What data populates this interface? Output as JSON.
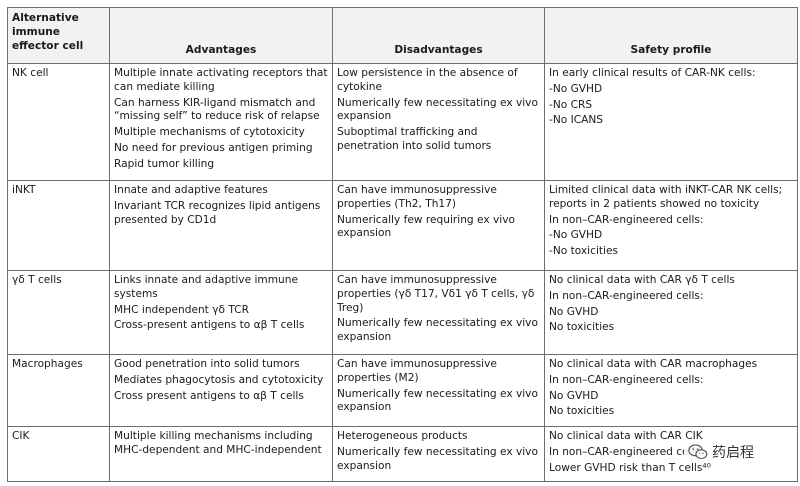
{
  "headers": [
    "Alternative immune effector cell",
    "Advantages",
    "Disadvantages",
    "Safety profile"
  ],
  "rows": [
    {
      "cell": "NK cell",
      "advantages": [
        "Multiple innate activating receptors that can mediate killing",
        "Can harness KIR-ligand mismatch and “missing self” to reduce risk of relapse",
        "Multiple mechanisms of cytotoxicity",
        "No need for previous antigen priming",
        "Rapid tumor killing"
      ],
      "disadvantages": [
        "Low persistence in the absence of cytokine",
        "Numerically few necessitating ex vivo expansion",
        "Suboptimal trafficking and penetration into solid tumors"
      ],
      "safety": [
        "In early clinical results of CAR-NK cells:",
        "-No GVHD",
        "-No CRS",
        "-No ICANS"
      ]
    },
    {
      "cell": "iNKT",
      "advantages": [
        "Innate and adaptive features",
        "Invariant TCR recognizes lipid antigens presented by CD1d"
      ],
      "disadvantages": [
        "Can have immunosuppressive properties (Th2, Th17)",
        "Numerically few requiring ex vivo expansion"
      ],
      "safety": [
        "Limited clinical data with iNKT-CAR NK cells; reports in 2 patients showed no toxicity",
        "In non–CAR-engineered cells:",
        "-No GVHD",
        "-No toxicities"
      ]
    },
    {
      "cell": "γδ T cells",
      "advantages": [
        "Links innate and adaptive immune systems",
        "MHC independent γδ TCR",
        "Cross-present antigens to αβ T cells"
      ],
      "disadvantages": [
        "Can have immunosuppressive properties (γδ T17, Vδ1 γδ T cells, γδ Treg)",
        "Numerically few necessitating ex vivo expansion"
      ],
      "safety": [
        "No clinical data with CAR γδ T cells",
        "In non–CAR-engineered cells:",
        "No GVHD",
        "No toxicities"
      ]
    },
    {
      "cell": "Macrophages",
      "advantages": [
        "Good penetration into solid tumors",
        "Mediates phagocytosis and cytotoxicity",
        "Cross present antigens to αβ T cells"
      ],
      "disadvantages": [
        "Can have immunosuppressive properties (M2)",
        "Numerically few necessitating ex vivo expansion"
      ],
      "safety": [
        "No clinical data with CAR macrophages",
        "In non–CAR-engineered cells:",
        "No GVHD",
        "No toxicities"
      ]
    },
    {
      "cell": "CIK",
      "advantages": [
        "Multiple killing mechanisms including MHC-dependent and MHC-independent"
      ],
      "disadvantages": [
        "Heterogeneous products",
        "Numerically few necessitating ex vivo expansion"
      ],
      "safety": [
        "No clinical data with CAR CIK",
        "In non–CAR-engineered cells",
        "Lower GVHD risk than T cells⁴⁰"
      ]
    }
  ],
  "watermark": {
    "icon": "wechat-icon",
    "text": "药启程"
  }
}
